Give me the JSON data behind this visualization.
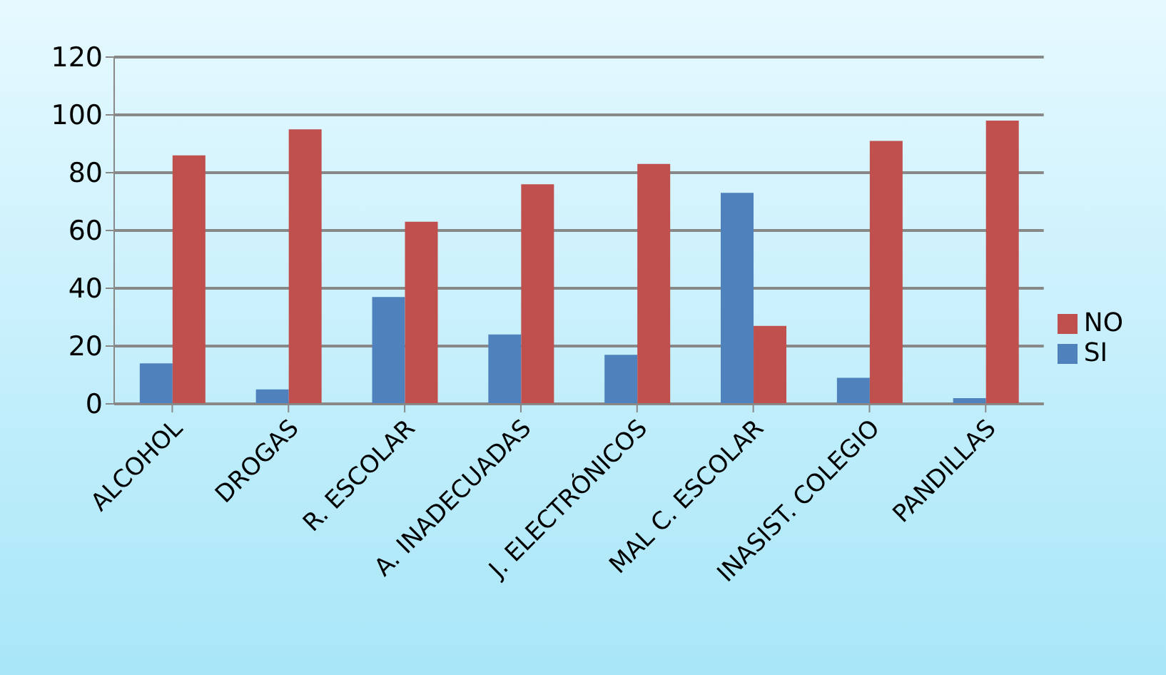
{
  "chart_data": {
    "type": "bar",
    "categories": [
      "ALCOHOL",
      "DROGAS",
      "R. ESCOLAR",
      "A. INADECUADAS",
      "J. ELECTRÓNICOS",
      "MAL C. ESCOLAR",
      "INASIST. COLEGIO",
      "PANDILLAS"
    ],
    "series": [
      {
        "name": "SI",
        "color": "#4f81bd",
        "values": [
          14,
          5,
          37,
          24,
          17,
          73,
          9,
          2
        ]
      },
      {
        "name": "NO",
        "color": "#c0504d",
        "values": [
          86,
          95,
          63,
          76,
          83,
          27,
          91,
          98
        ]
      }
    ],
    "ylim": [
      0,
      120
    ],
    "yticks": [
      0,
      20,
      40,
      60,
      80,
      100,
      120
    ],
    "grid": "y",
    "legend": "right"
  }
}
